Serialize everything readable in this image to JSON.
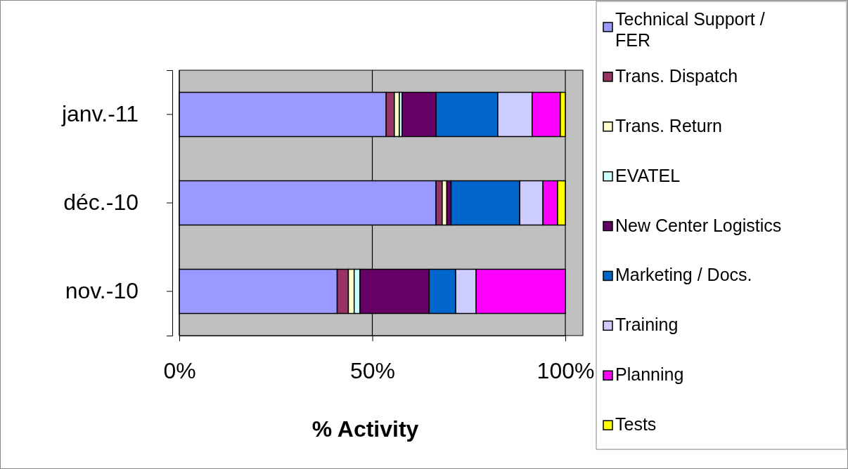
{
  "chart_data": {
    "type": "bar",
    "orientation": "horizontal",
    "stacked": true,
    "categories": [
      "janv.-11",
      "déc.-10",
      "nov.-10"
    ],
    "series": [
      {
        "name": "Technical Support  / FER",
        "color": "#9999ff",
        "values": [
          53.6,
          66.5,
          40.9
        ]
      },
      {
        "name": "Trans. Dispatch",
        "color": "#993366",
        "values": [
          2.1,
          1.6,
          2.9
        ]
      },
      {
        "name": "Trans. Return",
        "color": "#ffffcc",
        "values": [
          1.3,
          1.2,
          1.5
        ]
      },
      {
        "name": "EVATEL",
        "color": "#ccffff",
        "values": [
          0.7,
          null,
          1.5
        ]
      },
      {
        "name": "New Center Logistics",
        "color": "#660066",
        "values": [
          8.8,
          1.1,
          17.9
        ]
      },
      {
        "name": "Marketing / Docs.",
        "color": "#0066cc",
        "values": [
          16.0,
          17.8,
          6.9
        ]
      },
      {
        "name": "Training",
        "color": "#ccccff",
        "values": [
          8.9,
          6.0,
          5.3
        ]
      },
      {
        "name": "Planning",
        "color": "#ff00ff",
        "values": [
          7.3,
          3.8,
          23.1
        ]
      },
      {
        "name": " Tests",
        "color": "#ffff00",
        "values": [
          1.3,
          2.0,
          0
        ]
      }
    ],
    "xlim": [
      0,
      100
    ],
    "xticks": [
      {
        "value": 0,
        "label": "0%"
      },
      {
        "value": 50,
        "label": "50%"
      },
      {
        "value": 100,
        "label": "100%"
      }
    ],
    "xlabel": "% Activity",
    "grid": "x",
    "legend": "right"
  }
}
